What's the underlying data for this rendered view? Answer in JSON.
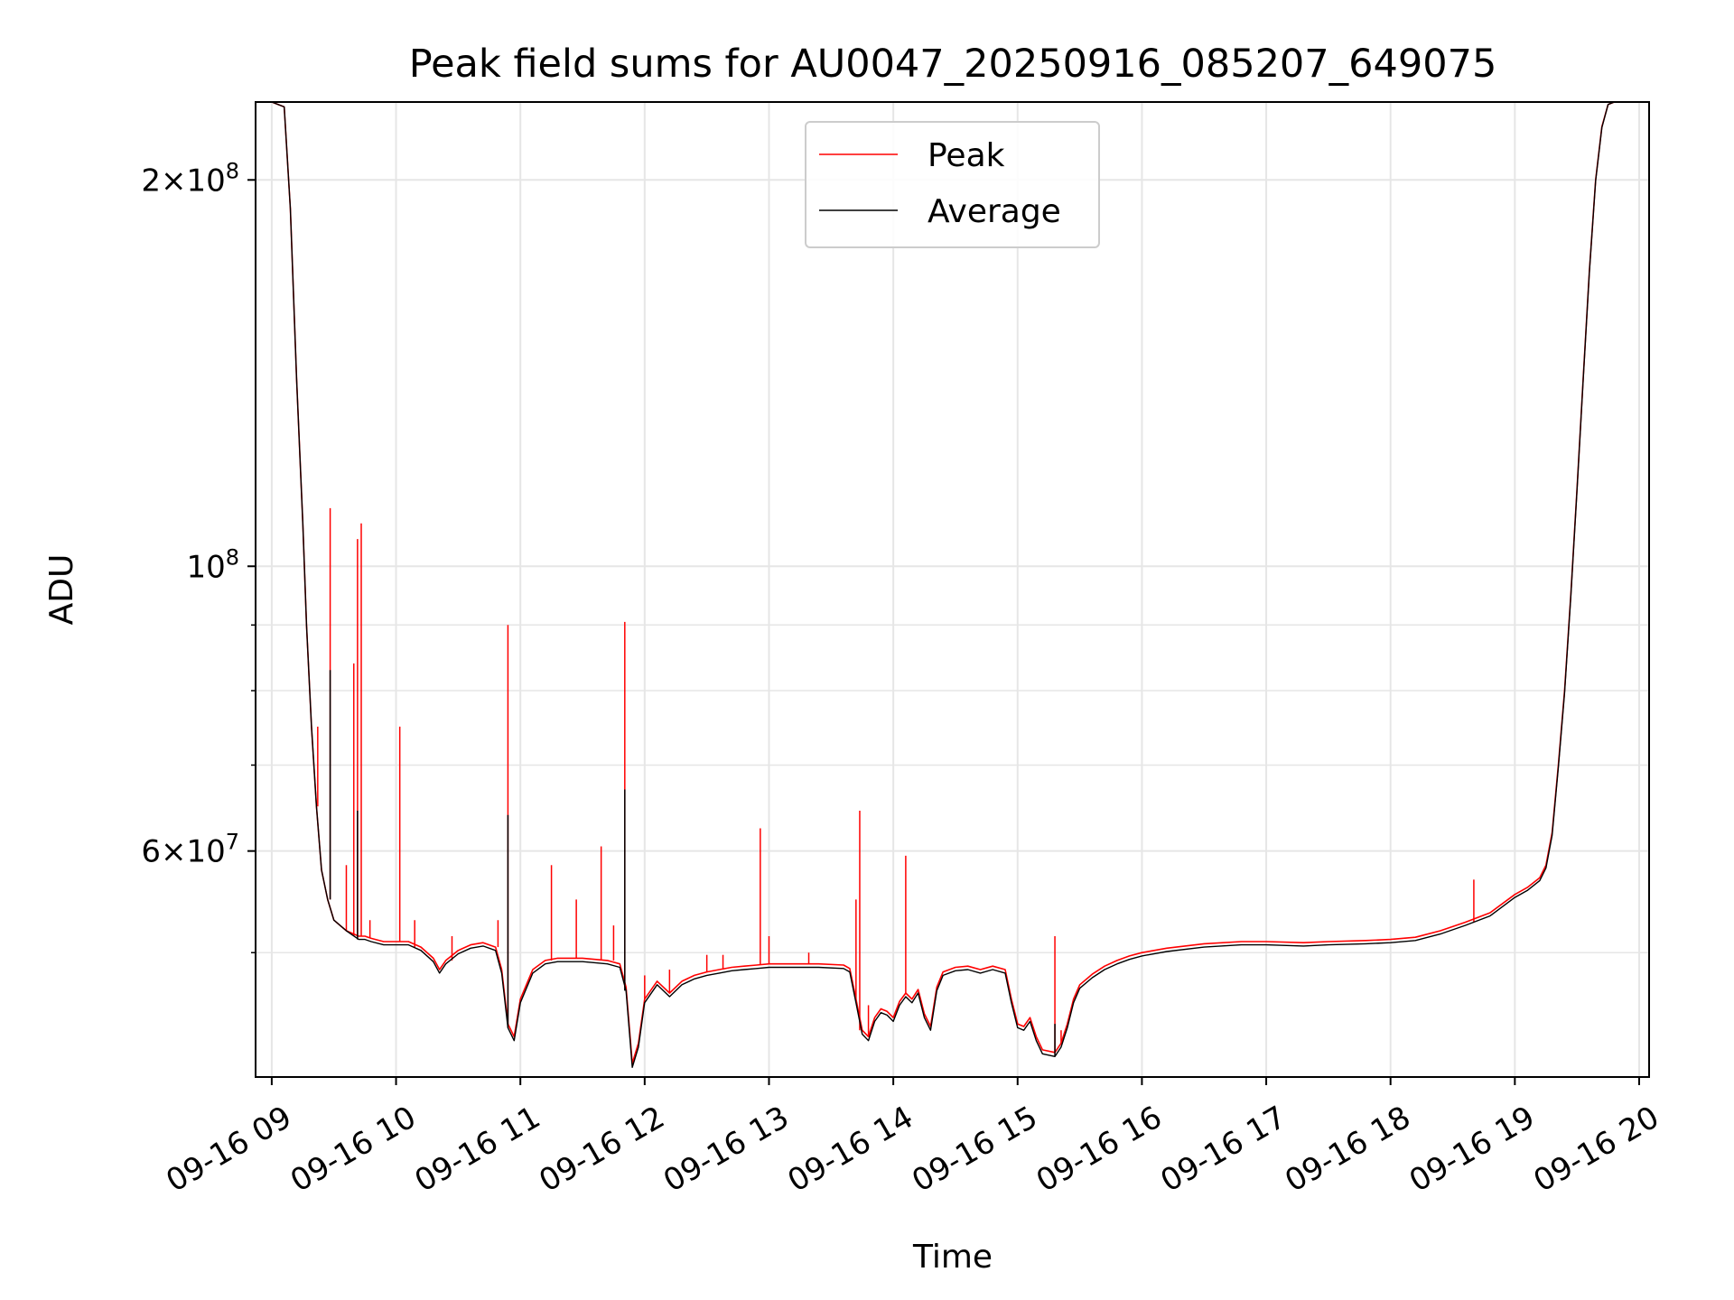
{
  "chart_data": {
    "type": "line",
    "title": "Peak field sums for AU0047_20250916_085207_649075",
    "xlabel": "Time",
    "ylabel": "ADU",
    "yscale": "log",
    "ylim": [
      40000000,
      230000000
    ],
    "xlim": [
      8.87,
      20.08
    ],
    "grid": true,
    "legend_position": "top-center",
    "x_ticks": [
      {
        "value": 9,
        "label": "09-16 09"
      },
      {
        "value": 10,
        "label": "09-16 10"
      },
      {
        "value": 11,
        "label": "09-16 11"
      },
      {
        "value": 12,
        "label": "09-16 12"
      },
      {
        "value": 13,
        "label": "09-16 13"
      },
      {
        "value": 14,
        "label": "09-16 14"
      },
      {
        "value": 15,
        "label": "09-16 15"
      },
      {
        "value": 16,
        "label": "09-16 16"
      },
      {
        "value": 17,
        "label": "09-16 17"
      },
      {
        "value": 18,
        "label": "09-16 18"
      },
      {
        "value": 19,
        "label": "09-16 19"
      },
      {
        "value": 20,
        "label": "09-16 20"
      }
    ],
    "y_ticks": [
      {
        "value": 200000000,
        "mantissa": "2",
        "exponent": "8"
      },
      {
        "value": 100000000,
        "mantissa": "",
        "exponent": "8"
      },
      {
        "value": 60000000,
        "mantissa": "6",
        "exponent": "7"
      }
    ],
    "y_minor_ticks": [
      50000000,
      70000000,
      80000000,
      90000000
    ],
    "series": [
      {
        "name": "Peak",
        "color": "#ff0000",
        "x": [
          8.87,
          9.0,
          9.1,
          9.15,
          9.2,
          9.25,
          9.28,
          9.32,
          9.36,
          9.4,
          9.45,
          9.5,
          9.55,
          9.6,
          9.7,
          9.75,
          9.8,
          9.9,
          10.0,
          10.1,
          10.2,
          10.3,
          10.35,
          10.4,
          10.5,
          10.6,
          10.7,
          10.8,
          10.85,
          10.9,
          10.95,
          11.0,
          11.1,
          11.2,
          11.3,
          11.4,
          11.5,
          11.6,
          11.7,
          11.8,
          11.85,
          11.9,
          11.95,
          12.0,
          12.1,
          12.2,
          12.3,
          12.4,
          12.5,
          12.6,
          12.7,
          12.8,
          12.9,
          13.0,
          13.2,
          13.4,
          13.6,
          13.65,
          13.7,
          13.75,
          13.8,
          13.85,
          13.9,
          13.95,
          14.0,
          14.05,
          14.1,
          14.15,
          14.2,
          14.25,
          14.3,
          14.35,
          14.4,
          14.5,
          14.6,
          14.7,
          14.8,
          14.9,
          14.95,
          15.0,
          15.05,
          15.1,
          15.15,
          15.2,
          15.3,
          15.35,
          15.4,
          15.45,
          15.5,
          15.6,
          15.7,
          15.8,
          15.9,
          16.0,
          16.2,
          16.5,
          16.8,
          17.0,
          17.3,
          17.5,
          17.8,
          18.0,
          18.2,
          18.4,
          18.6,
          18.8,
          19.0,
          19.1,
          19.2,
          19.25,
          19.3,
          19.35,
          19.4,
          19.45,
          19.5,
          19.55,
          19.6,
          19.65,
          19.7,
          19.75,
          19.8,
          20.0,
          20.08
        ],
        "y": [
          230000000,
          230000000,
          228000000,
          190000000,
          140000000,
          108000000,
          90000000,
          75000000,
          65000000,
          58000000,
          55000000,
          53000000,
          52500000,
          52000000,
          51500000,
          51500000,
          51300000,
          51000000,
          51000000,
          51000000,
          50500000,
          49500000,
          48500000,
          49300000,
          50200000,
          50700000,
          50900000,
          50500000,
          48500000,
          44000000,
          43000000,
          46000000,
          48500000,
          49300000,
          49500000,
          49500000,
          49500000,
          49400000,
          49300000,
          49000000,
          47000000,
          41000000,
          42500000,
          46000000,
          47500000,
          46500000,
          47500000,
          48000000,
          48300000,
          48500000,
          48700000,
          48800000,
          48900000,
          49000000,
          49000000,
          49000000,
          48900000,
          48600000,
          46000000,
          43500000,
          43000000,
          44500000,
          45200000,
          45000000,
          44500000,
          45800000,
          46500000,
          46000000,
          46800000,
          44800000,
          43800000,
          47000000,
          48300000,
          48700000,
          48800000,
          48500000,
          48800000,
          48500000,
          46000000,
          44000000,
          43800000,
          44500000,
          43000000,
          42000000,
          41800000,
          42500000,
          44000000,
          46000000,
          47200000,
          48100000,
          48800000,
          49300000,
          49700000,
          50000000,
          50400000,
          50800000,
          51000000,
          51000000,
          50900000,
          51000000,
          51100000,
          51200000,
          51400000,
          52000000,
          52800000,
          53700000,
          55500000,
          56200000,
          57200000,
          58500000,
          62000000,
          70000000,
          80000000,
          95000000,
          115000000,
          140000000,
          170000000,
          200000000,
          220000000,
          229000000,
          230000000,
          230000000,
          230000000
        ],
        "spikes": [
          {
            "x": 9.37,
            "y": 75000000
          },
          {
            "x": 9.47,
            "y": 111000000
          },
          {
            "x": 9.6,
            "y": 58500000
          },
          {
            "x": 9.66,
            "y": 84000000
          },
          {
            "x": 9.69,
            "y": 105000000
          },
          {
            "x": 9.72,
            "y": 108000000
          },
          {
            "x": 9.79,
            "y": 53000000
          },
          {
            "x": 10.03,
            "y": 75000000
          },
          {
            "x": 10.15,
            "y": 53000000
          },
          {
            "x": 10.45,
            "y": 51500000
          },
          {
            "x": 10.82,
            "y": 53000000
          },
          {
            "x": 10.9,
            "y": 90000000
          },
          {
            "x": 11.25,
            "y": 58500000
          },
          {
            "x": 11.45,
            "y": 55000000
          },
          {
            "x": 11.65,
            "y": 60500000
          },
          {
            "x": 11.75,
            "y": 52500000
          },
          {
            "x": 11.84,
            "y": 90500000
          },
          {
            "x": 12.0,
            "y": 48000000
          },
          {
            "x": 12.2,
            "y": 48500000
          },
          {
            "x": 12.5,
            "y": 49800000
          },
          {
            "x": 12.63,
            "y": 49800000
          },
          {
            "x": 12.93,
            "y": 62500000
          },
          {
            "x": 13.0,
            "y": 51500000
          },
          {
            "x": 13.32,
            "y": 50000000
          },
          {
            "x": 13.7,
            "y": 55000000
          },
          {
            "x": 13.73,
            "y": 64500000
          },
          {
            "x": 13.8,
            "y": 45500000
          },
          {
            "x": 14.1,
            "y": 59500000
          },
          {
            "x": 15.3,
            "y": 51500000
          },
          {
            "x": 15.35,
            "y": 43500000
          },
          {
            "x": 18.67,
            "y": 57000000
          }
        ]
      },
      {
        "name": "Average",
        "color": "#000000",
        "x": [
          8.87,
          9.0,
          9.1,
          9.15,
          9.2,
          9.25,
          9.28,
          9.32,
          9.36,
          9.4,
          9.45,
          9.5,
          9.55,
          9.6,
          9.7,
          9.75,
          9.8,
          9.9,
          10.0,
          10.1,
          10.2,
          10.3,
          10.35,
          10.4,
          10.5,
          10.6,
          10.7,
          10.8,
          10.85,
          10.9,
          10.95,
          11.0,
          11.1,
          11.2,
          11.3,
          11.4,
          11.5,
          11.6,
          11.7,
          11.8,
          11.85,
          11.9,
          11.95,
          12.0,
          12.1,
          12.2,
          12.3,
          12.4,
          12.5,
          12.6,
          12.7,
          12.8,
          12.9,
          13.0,
          13.2,
          13.4,
          13.6,
          13.65,
          13.7,
          13.75,
          13.8,
          13.85,
          13.9,
          13.95,
          14.0,
          14.05,
          14.1,
          14.15,
          14.2,
          14.25,
          14.3,
          14.35,
          14.4,
          14.5,
          14.6,
          14.7,
          14.8,
          14.9,
          14.95,
          15.0,
          15.05,
          15.1,
          15.15,
          15.2,
          15.3,
          15.35,
          15.4,
          15.45,
          15.5,
          15.6,
          15.7,
          15.8,
          15.9,
          16.0,
          16.2,
          16.5,
          16.8,
          17.0,
          17.3,
          17.5,
          17.8,
          18.0,
          18.2,
          18.4,
          18.6,
          18.8,
          19.0,
          19.1,
          19.2,
          19.25,
          19.3,
          19.35,
          19.4,
          19.45,
          19.5,
          19.55,
          19.6,
          19.65,
          19.7,
          19.75,
          19.8,
          20.0,
          20.08
        ],
        "y": [
          230000000,
          230000000,
          228000000,
          190000000,
          140000000,
          108000000,
          90000000,
          75000000,
          65000000,
          58000000,
          55000000,
          53000000,
          52500000,
          52000000,
          51200000,
          51200000,
          51000000,
          50700000,
          50700000,
          50700000,
          50200000,
          49200000,
          48200000,
          49000000,
          49900000,
          50400000,
          50600000,
          50200000,
          48200000,
          43700000,
          42700000,
          45700000,
          48200000,
          49000000,
          49200000,
          49200000,
          49200000,
          49100000,
          49000000,
          48700000,
          46700000,
          40700000,
          42200000,
          45700000,
          47200000,
          46200000,
          47200000,
          47700000,
          48000000,
          48200000,
          48400000,
          48500000,
          48600000,
          48700000,
          48700000,
          48700000,
          48600000,
          48300000,
          45700000,
          43200000,
          42700000,
          44200000,
          44900000,
          44700000,
          44200000,
          45500000,
          46200000,
          45700000,
          46500000,
          44500000,
          43500000,
          46700000,
          48000000,
          48400000,
          48500000,
          48200000,
          48500000,
          48200000,
          45700000,
          43700000,
          43500000,
          44200000,
          42700000,
          41700000,
          41500000,
          42200000,
          43700000,
          45700000,
          46900000,
          47800000,
          48500000,
          49000000,
          49400000,
          49700000,
          50100000,
          50500000,
          50700000,
          50700000,
          50600000,
          50700000,
          50800000,
          50900000,
          51100000,
          51700000,
          52500000,
          53400000,
          55200000,
          55900000,
          56900000,
          58200000,
          61700000,
          69700000,
          79700000,
          94700000,
          114700000,
          139700000,
          169700000,
          199700000,
          219700000,
          229000000,
          230000000,
          230000000,
          230000000
        ],
        "spikes": [
          {
            "x": 9.47,
            "y": 83000000
          },
          {
            "x": 9.69,
            "y": 64500000
          },
          {
            "x": 10.9,
            "y": 64000000
          },
          {
            "x": 11.84,
            "y": 67000000
          },
          {
            "x": 15.3,
            "y": 44000000
          }
        ]
      }
    ]
  }
}
